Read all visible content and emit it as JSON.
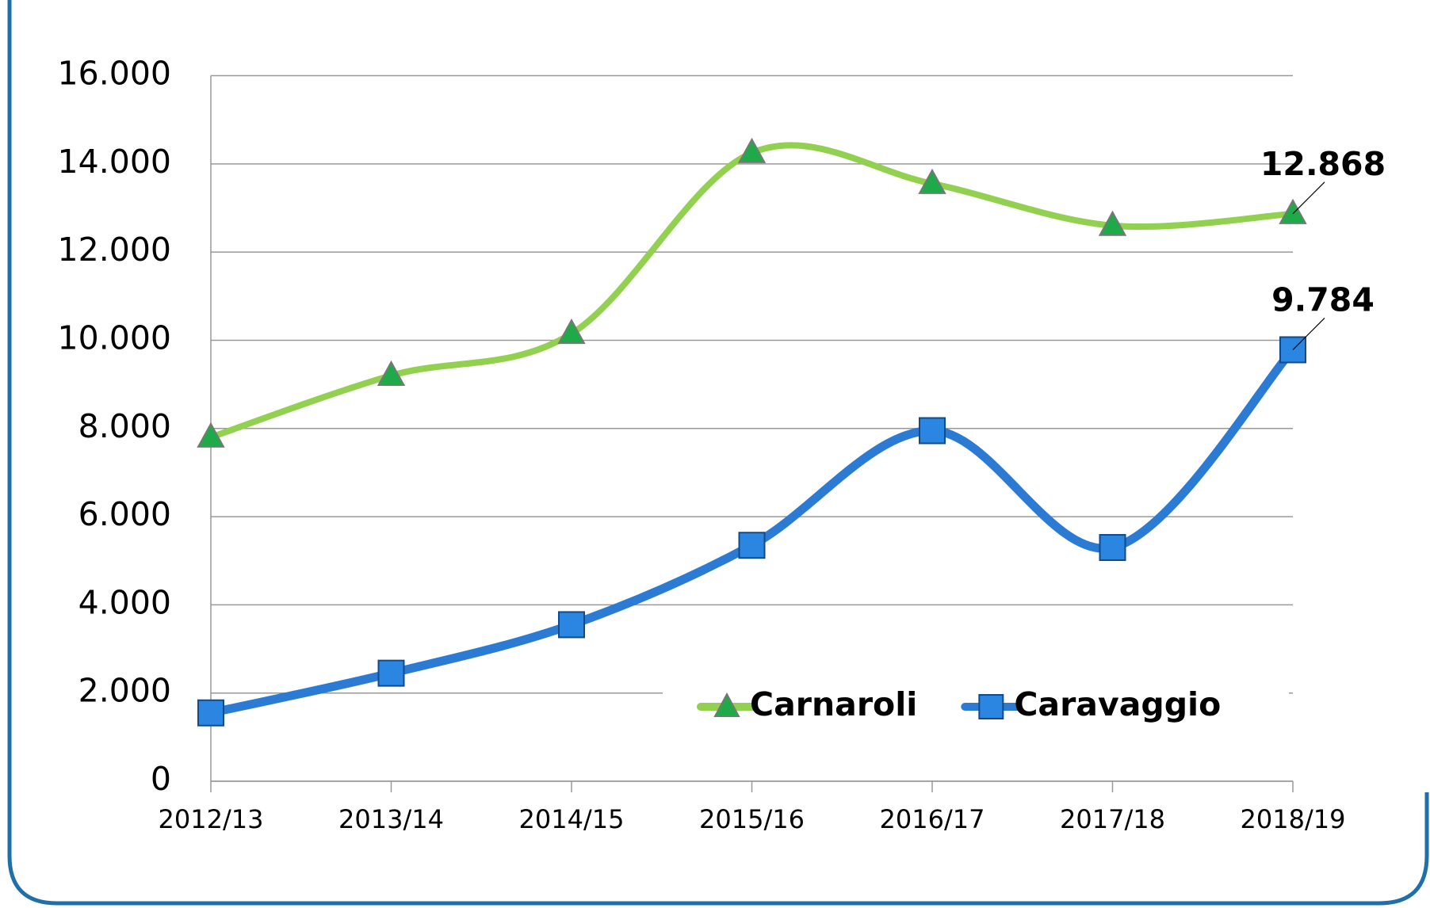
{
  "chart_data": {
    "type": "line",
    "categories": [
      "2012/13",
      "2013/14",
      "2014/15",
      "2015/16",
      "2016/17",
      "2017/18",
      "2018/19"
    ],
    "series": [
      {
        "name": "Carnaroli",
        "color": "#92d050",
        "marker_color": "#1faa4a",
        "marker": "triangle",
        "values": [
          7800,
          9200,
          10150,
          14250,
          13550,
          12600,
          12868
        ],
        "value_labels": [
          null,
          null,
          null,
          null,
          null,
          null,
          "12.868"
        ]
      },
      {
        "name": "Caravaggio",
        "color": "#2b7bd4",
        "marker_color": "#2a86e0",
        "marker": "square",
        "values": [
          1550,
          2450,
          3550,
          5350,
          7950,
          5300,
          9784
        ],
        "value_labels": [
          null,
          null,
          null,
          null,
          null,
          null,
          "9.784"
        ]
      }
    ],
    "ylim": [
      0,
      16000
    ],
    "yticks": [
      0,
      {
        "value": 2000,
        "label": "2.000"
      },
      {
        "value": 4000,
        "label": "4.000"
      },
      {
        "value": 6000,
        "label": "6.000"
      },
      {
        "value": 8000,
        "label": "8.000"
      },
      {
        "value": 10000,
        "label": "10.000"
      },
      {
        "value": 12000,
        "label": "12.000"
      },
      {
        "value": 14000,
        "label": "14.000"
      },
      {
        "value": 16000,
        "label": "16.000"
      }
    ],
    "grid": true,
    "smooth": true,
    "legend": "bottom-right"
  }
}
